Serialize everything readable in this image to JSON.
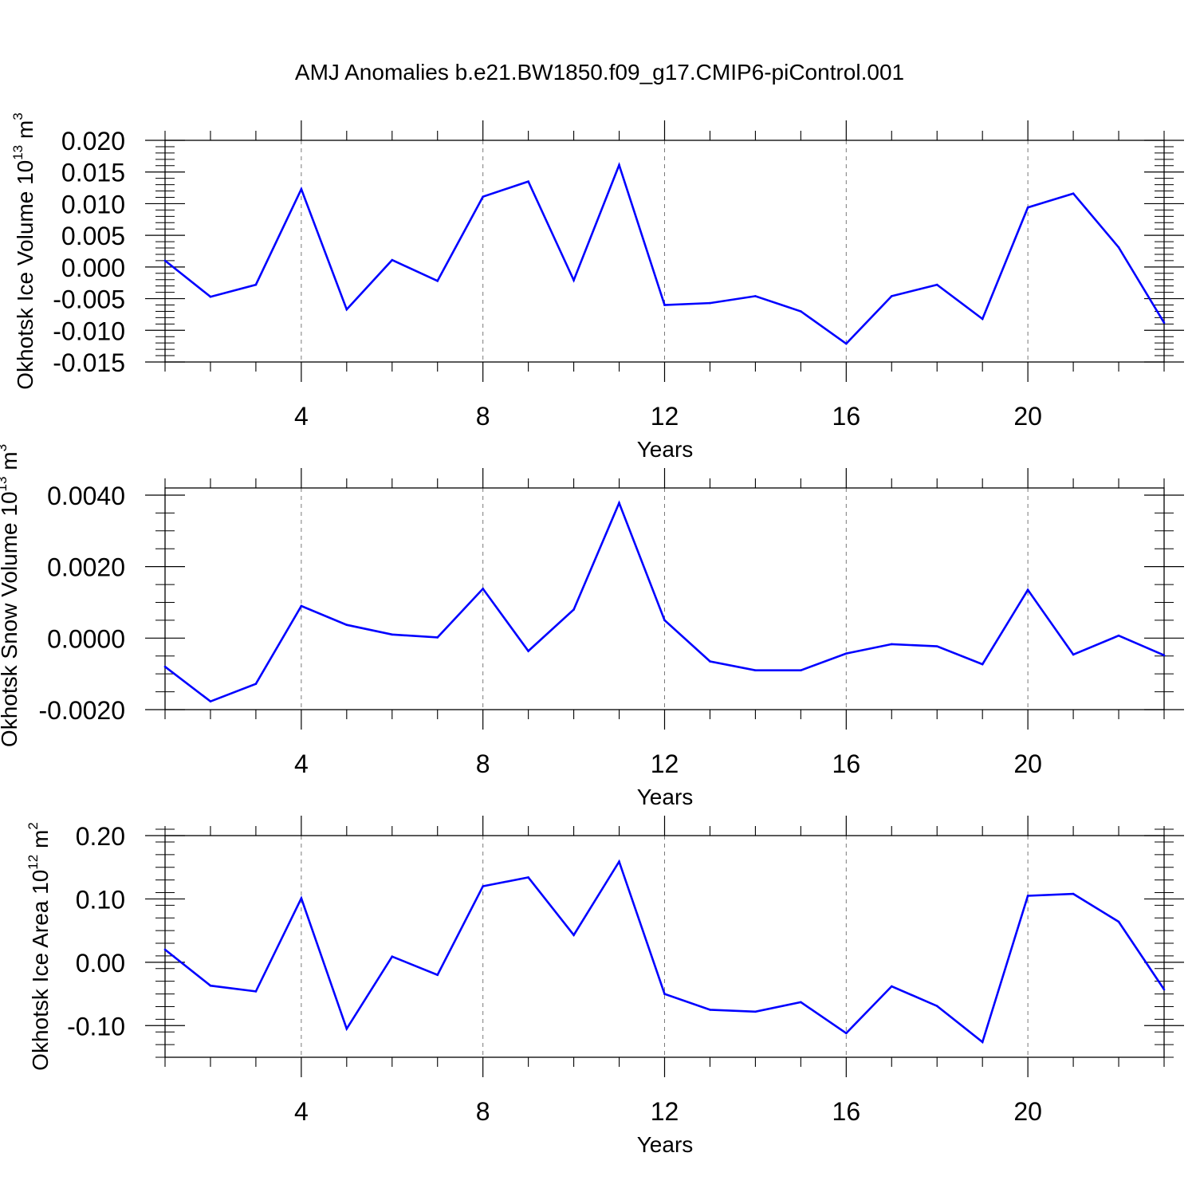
{
  "title": "AMJ Anomalies b.e21.BW1850.f09_g17.CMIP6-piControl.001",
  "chart_data": [
    {
      "type": "line",
      "ylabel_main": "Okhotsk Ice Volume 10",
      "ylabel_exp": "13",
      "ylabel_unit": " m",
      "ylabel_unit_exp": "3",
      "xlabel": "Years",
      "xlim": [
        1,
        23
      ],
      "ylim": [
        -0.015,
        0.02
      ],
      "x_ticks": [
        4,
        8,
        12,
        16,
        20
      ],
      "x_tick_labels": [
        "4",
        "8",
        "12",
        "16",
        "20"
      ],
      "y_ticks": [
        -0.015,
        -0.01,
        -0.005,
        0.0,
        0.005,
        0.01,
        0.015,
        0.02
      ],
      "y_tick_labels": [
        "-0.015",
        "-0.010",
        "-0.005",
        "0.000",
        "0.005",
        "0.010",
        "0.015",
        "0.020"
      ],
      "y_minor_step": 0.001,
      "grid": "dashed vertical at major x ticks",
      "series": [
        {
          "name": "Okhotsk Ice Volume",
          "color": "#0000ff",
          "x": [
            1,
            2,
            3,
            4,
            5,
            6,
            7,
            8,
            9,
            10,
            11,
            12,
            13,
            14,
            15,
            16,
            17,
            18,
            19,
            20,
            21,
            22,
            23
          ],
          "values": [
            0.001,
            -0.0047,
            -0.0028,
            0.0123,
            -0.0067,
            0.0011,
            -0.0022,
            0.0111,
            0.0135,
            -0.0021,
            0.0161,
            -0.006,
            -0.0057,
            -0.0046,
            -0.007,
            -0.0121,
            -0.0046,
            -0.0028,
            -0.0082,
            0.0094,
            0.0116,
            0.0031,
            -0.0088
          ]
        }
      ]
    },
    {
      "type": "line",
      "ylabel_main": "Okhotsk Snow Volume 10",
      "ylabel_exp": "13",
      "ylabel_unit": " m",
      "ylabel_unit_exp": "3",
      "xlabel": "Years",
      "xlim": [
        1,
        23
      ],
      "ylim": [
        -0.002,
        0.0042
      ],
      "x_ticks": [
        4,
        8,
        12,
        16,
        20
      ],
      "x_tick_labels": [
        "4",
        "8",
        "12",
        "16",
        "20"
      ],
      "y_ticks": [
        -0.002,
        0.0,
        0.002,
        0.004
      ],
      "y_tick_labels": [
        "-0.0020",
        "0.0000",
        "0.0020",
        "0.0040"
      ],
      "y_minor_step": 0.0005,
      "grid": "dashed vertical at major x ticks",
      "series": [
        {
          "name": "Okhotsk Snow Volume",
          "color": "#0000ff",
          "x": [
            1,
            2,
            3,
            4,
            5,
            6,
            7,
            8,
            9,
            10,
            11,
            12,
            13,
            14,
            15,
            16,
            17,
            18,
            19,
            20,
            21,
            22,
            23
          ],
          "values": [
            -0.0008,
            -0.00177,
            -0.00128,
            0.0009,
            0.00037,
            0.0001,
            2e-05,
            0.00138,
            -0.00036,
            0.0008,
            0.00378,
            0.0005,
            -0.00065,
            -0.0009,
            -0.0009,
            -0.00043,
            -0.00017,
            -0.00023,
            -0.00073,
            0.00135,
            -0.00046,
            7e-05,
            -0.00048
          ]
        }
      ]
    },
    {
      "type": "line",
      "ylabel_main": "Okhotsk Ice Area 10",
      "ylabel_exp": "12",
      "ylabel_unit": " m",
      "ylabel_unit_exp": "2",
      "xlabel": "Years",
      "xlim": [
        1,
        23
      ],
      "ylim": [
        -0.15,
        0.2
      ],
      "x_ticks": [
        4,
        8,
        12,
        16,
        20
      ],
      "x_tick_labels": [
        "4",
        "8",
        "12",
        "16",
        "20"
      ],
      "y_ticks": [
        -0.1,
        0.0,
        0.1,
        0.2
      ],
      "y_tick_labels": [
        "-0.10",
        "0.00",
        "0.10",
        "0.20"
      ],
      "y_minor_step": 0.02,
      "grid": "dashed vertical at major x ticks",
      "series": [
        {
          "name": "Okhotsk Ice Area",
          "color": "#0000ff",
          "x": [
            1,
            2,
            3,
            4,
            5,
            6,
            7,
            8,
            9,
            10,
            11,
            12,
            13,
            14,
            15,
            16,
            17,
            18,
            19,
            20,
            21,
            22,
            23
          ],
          "values": [
            0.02,
            -0.037,
            -0.046,
            0.101,
            -0.105,
            0.009,
            -0.02,
            0.12,
            0.134,
            0.043,
            0.159,
            -0.05,
            -0.075,
            -0.078,
            -0.063,
            -0.112,
            -0.038,
            -0.069,
            -0.126,
            0.105,
            0.108,
            0.064,
            -0.043
          ]
        }
      ]
    }
  ]
}
